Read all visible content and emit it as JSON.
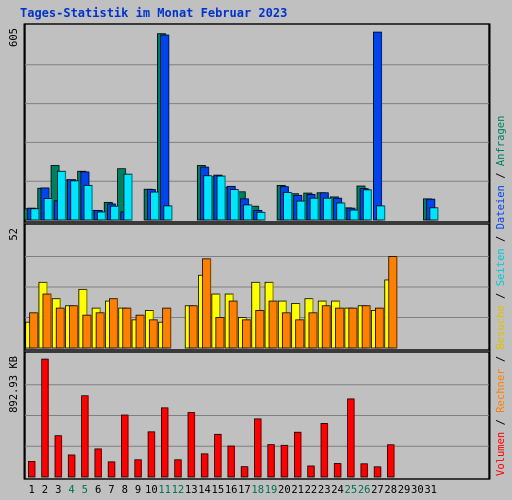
{
  "title": "Tages-Statistik im Monat Februar 2023",
  "chart_data": [
    {
      "type": "bar",
      "panel": "Anfragen / Dateien / Seiten",
      "ymax_label": "605",
      "ylim": [
        0,
        605
      ],
      "series": [
        {
          "name": "Anfragen",
          "color": "#008060",
          "values": [
            35,
            99,
            170,
            125,
            152,
            30,
            55,
            160,
            0,
            96,
            581,
            0,
            0,
            170,
            135,
            102,
            88,
            43,
            0,
            108,
            82,
            84,
            85,
            72,
            38,
            106,
            0,
            0,
            0,
            0,
            66
          ]
        },
        {
          "name": "Dateien",
          "color": "#0044ee",
          "values": [
            37,
            100,
            60,
            126,
            150,
            30,
            50,
            25,
            0,
            95,
            577,
            0,
            0,
            165,
            140,
            105,
            66,
            30,
            0,
            104,
            77,
            80,
            85,
            68,
            37,
            98,
            586,
            0,
            0,
            0,
            65
          ]
        },
        {
          "name": "Seiten",
          "color": "#00e5ff",
          "values": [
            35,
            67,
            152,
            122,
            108,
            25,
            43,
            143,
            0,
            87,
            44,
            0,
            0,
            138,
            137,
            95,
            47,
            24,
            0,
            86,
            59,
            68,
            68,
            53,
            31,
            94,
            44,
            0,
            0,
            0,
            38
          ]
        }
      ]
    },
    {
      "type": "bar",
      "panel": "Besuche / Rechner",
      "ymax_label": "52",
      "ylim": [
        0,
        52
      ],
      "series": [
        {
          "name": "Besuche",
          "color": "#ffff00",
          "values": [
            11,
            28,
            21,
            18,
            25,
            17,
            20,
            17,
            12,
            16,
            11,
            0,
            18,
            31,
            23,
            23,
            13,
            28,
            28,
            20,
            19,
            21,
            20,
            20,
            17,
            18,
            16,
            29,
            0,
            0,
            0
          ]
        },
        {
          "name": "Rechner",
          "color": "#ff8000",
          "values": [
            15,
            23,
            17,
            18,
            14,
            15,
            21,
            17,
            14,
            12,
            17,
            0,
            18,
            38,
            13,
            20,
            12,
            16,
            20,
            15,
            12,
            15,
            18,
            17,
            17,
            18,
            17,
            39,
            0,
            0,
            0
          ]
        }
      ]
    },
    {
      "type": "bar",
      "panel": "Volumen",
      "ymax_label": "892.93 KB",
      "ylim": [
        0,
        892.93
      ],
      "series": [
        {
          "name": "Volumen",
          "color": "#ff0000",
          "values": [
            113,
            856,
            300,
            160,
            590,
            204,
            110,
            450,
            125,
            328,
            502,
            125,
            468,
            168,
            310,
            225,
            75,
            422,
            235,
            230,
            325,
            80,
            389,
            98,
            567,
            96,
            74,
            234,
            0,
            0,
            0
          ]
        }
      ]
    }
  ],
  "x_labels": [
    "1",
    "2",
    "3",
    "4",
    "5",
    "6",
    "7",
    "8",
    "9",
    "10",
    "11",
    "12",
    "13",
    "14",
    "15",
    "16",
    "17",
    "18",
    "19",
    "20",
    "21",
    "22",
    "23",
    "24",
    "25",
    "26",
    "27",
    "28",
    "29",
    "30",
    "31"
  ],
  "weekend_days": [
    4,
    5,
    11,
    12,
    18,
    19,
    25,
    26
  ],
  "colors": {
    "background": "#c0c0c0",
    "weekday_label": "#000000",
    "weekend_label": "#007050",
    "grid": "#808080",
    "axis_anfragen": "#008060",
    "axis_dateien": "#0044ee",
    "axis_seiten": "#00c8d8",
    "axis_besuche": "#e0c000",
    "axis_rechner": "#ff8000",
    "axis_volumen": "#ff0000"
  },
  "right_legend": {
    "top": [
      "Anfragen",
      "Dateien",
      "Seiten",
      "Besuche",
      "Rechner",
      "Volumen"
    ],
    "separator": " / "
  }
}
